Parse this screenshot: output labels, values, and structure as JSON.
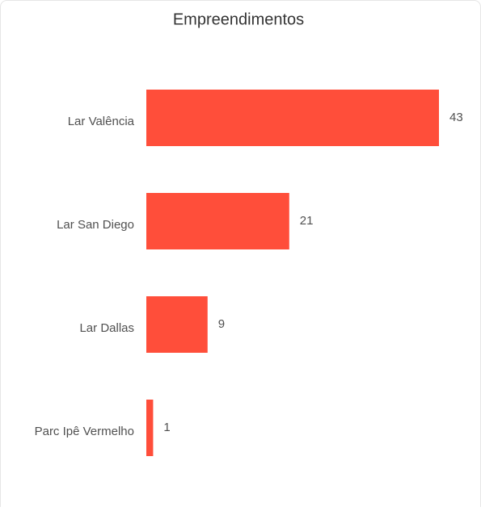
{
  "chart_data": {
    "type": "bar",
    "orientation": "horizontal",
    "title": "Empreendimentos",
    "categories": [
      "Lar Valência",
      "Lar San Diego",
      "Lar Dallas",
      "Parc Ipê Vermelho"
    ],
    "values": [
      43,
      21,
      9,
      1
    ],
    "color": "#ff4e3a"
  }
}
